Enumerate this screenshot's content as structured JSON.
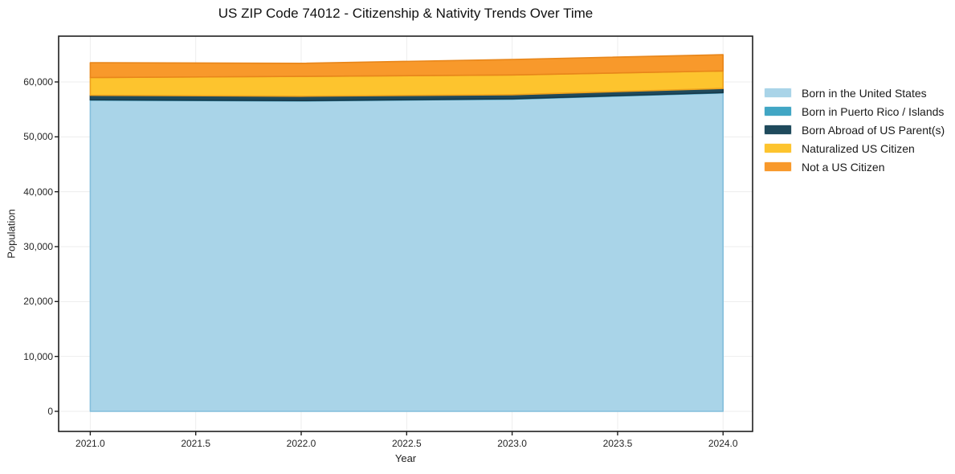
{
  "chart_data": {
    "type": "area",
    "stacked": true,
    "title": "US ZIP Code 74012 - Citizenship & Nativity Trends Over Time",
    "xlabel": "Year",
    "ylabel": "Population",
    "x": [
      2021,
      2022,
      2023,
      2024
    ],
    "series": [
      {
        "name": "Born in the United States",
        "color": "#a9d4e8",
        "edge": "#84bfdc",
        "values": [
          56690,
          56550,
          56870,
          58010
        ]
      },
      {
        "name": "Born in Puerto Rico / Islands",
        "color": "#41a6c4",
        "edge": "#338fad",
        "values": [
          55,
          60,
          65,
          60
        ]
      },
      {
        "name": "Born Abroad of US Parent(s)",
        "color": "#1f4a5c",
        "edge": "#17394a",
        "values": [
          830,
          780,
          730,
          740
        ]
      },
      {
        "name": "Naturalized US Citizen",
        "color": "#fdc42e",
        "edge": "#eda11d",
        "values": [
          3230,
          3620,
          3610,
          3190
        ]
      },
      {
        "name": "Not a US Citizen",
        "color": "#f8992b",
        "edge": "#e8861a",
        "values": [
          2700,
          2390,
          2820,
          2960
        ]
      }
    ],
    "x_ticks": {
      "values": [
        2021.0,
        2021.5,
        2022.0,
        2022.5,
        2023.0,
        2023.5,
        2024.0
      ],
      "labels": [
        "2021.0",
        "2021.5",
        "2022.0",
        "2022.5",
        "2023.0",
        "2023.5",
        "2024.0"
      ]
    },
    "y_ticks": {
      "values": [
        0,
        10000,
        20000,
        30000,
        40000,
        50000,
        60000
      ],
      "labels": [
        "0",
        "10,000",
        "20,000",
        "30,000",
        "40,000",
        "50,000",
        "60,000"
      ]
    },
    "xlim": [
      2020.85,
      2024.14
    ],
    "ylim": [
      -3660,
      68340
    ],
    "grid": true,
    "grid_color": "#ededed",
    "axis_color": "#1f1f1f",
    "legend_position": "right"
  }
}
